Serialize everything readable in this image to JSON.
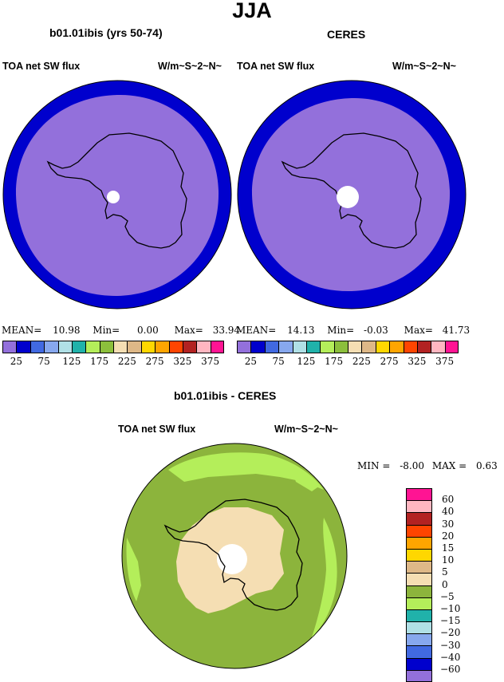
{
  "title": "JJA",
  "panels": [
    {
      "title": "b01.01ibis (yrs 50-74)",
      "variable": "TOA net SW flux",
      "units": "W/m~S~2~N~",
      "stats": {
        "mean_label": "MEAN=",
        "mean": "10.98",
        "min_label": "Min=",
        "min": "0.00",
        "max_label": "Max=",
        "max": "33.94"
      }
    },
    {
      "title": "CERES",
      "variable": "TOA net SW flux",
      "units": "W/m~S~2~N~",
      "stats": {
        "mean_label": "MEAN=",
        "mean": "14.13",
        "min_label": "Min=",
        "min": "-0.03",
        "max_label": "Max=",
        "max": "41.73"
      }
    }
  ],
  "top_colorbar": {
    "colors": [
      "#9370db",
      "#0000cd",
      "#4169e1",
      "#87a8ee",
      "#b0e0e6",
      "#20b2aa",
      "#b4ee5a",
      "#8cbf3c",
      "#f5deb3",
      "#deb887",
      "#ffd700",
      "#ffa500",
      "#ff4500",
      "#b22222",
      "#ffb6c1",
      "#ff1493"
    ],
    "labels": [
      "25",
      "75",
      "125",
      "175",
      "225",
      "275",
      "325",
      "375"
    ]
  },
  "diff_panel": {
    "title": "b01.01ibis - CERES",
    "variable": "TOA net SW flux",
    "units": "W/m~S~2~N~",
    "min_label": "MIN =",
    "min": "-8.00",
    "max_label": "MAX =",
    "max": "0.63"
  },
  "diff_colorbar": {
    "colors": [
      "#ff1493",
      "#ffb6c1",
      "#b22222",
      "#ff4500",
      "#ffa500",
      "#ffd700",
      "#deb887",
      "#f5deb3",
      "#8cb43c",
      "#b4ee5a",
      "#20b2aa",
      "#b0e0e6",
      "#87a8ee",
      "#4169e1",
      "#0000cd",
      "#9370db"
    ],
    "labels": [
      "60",
      "40",
      "30",
      "20",
      "15",
      "10",
      "5",
      "0",
      "−5",
      "−10",
      "−15",
      "−20",
      "−30",
      "−40",
      "−60"
    ]
  }
}
